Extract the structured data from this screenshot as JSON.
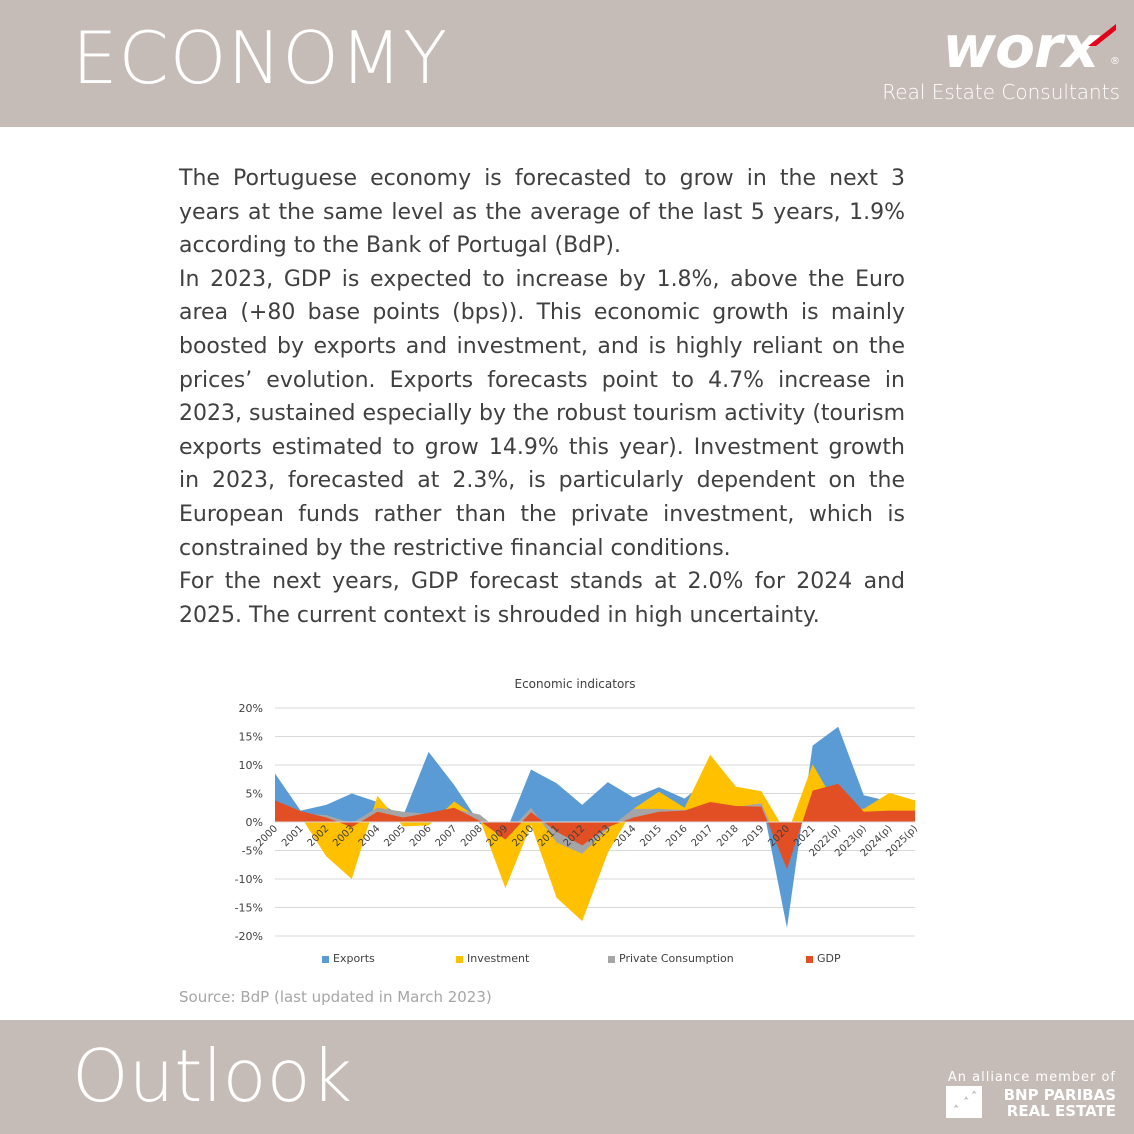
{
  "header": {
    "title": "ECONOMY",
    "logo_text": "worx",
    "logo_registered": "®",
    "logo_subtitle": "Real Estate Consultants"
  },
  "body": {
    "paragraphs": [
      "The Portuguese economy is forecasted to grow in the next 3 years at the same level as the average of the last 5 years, 1.9% according to the Bank of Portugal (BdP).",
      "In 2023, GDP is expected to increase by 1.8%, above the Euro area (+80 base points (bps)). This economic growth is mainly boosted by exports and investment, and is highly reliant on the prices’ evolution. Exports forecasts point to 4.7% increase in 2023, sustained especially by the robust tourism activity (tourism exports estimated to grow 14.9% this year). Investment growth in 2023, forecasted at 2.3%, is particularly dependent on the European funds rather than the private investment, which is constrained by the restrictive financial conditions.",
      "For the next years, GDP forecast stands at 2.0% for 2024 and 2025. The current context is shrouded in high uncertainty."
    ]
  },
  "chart_data": {
    "type": "area",
    "title": "Economic  indicators",
    "x": [
      "2000",
      "2001",
      "2002",
      "2003",
      "2004",
      "2005",
      "2006",
      "2007",
      "2008",
      "2009",
      "2010",
      "2011",
      "2012",
      "2013",
      "2014",
      "2015",
      "2016",
      "2017",
      "2018",
      "2019",
      "2020",
      "2021",
      "2022(p)",
      "2023(p)",
      "2024(p)",
      "2025(p)"
    ],
    "ylim": [
      -20,
      20
    ],
    "yticks": [
      20,
      15,
      10,
      5,
      0,
      -5,
      -10,
      -15,
      -20
    ],
    "ytick_labels": [
      "20%",
      "15%",
      "10%",
      "5%",
      "0%",
      "-5%",
      "-10%",
      "-15%",
      "-20%"
    ],
    "grid": true,
    "legend_position": "bottom",
    "series": [
      {
        "name": "Exports",
        "color": "#5b9bd5",
        "values": [
          8.5,
          2.0,
          3.0,
          5.0,
          3.5,
          1.0,
          12.3,
          6.5,
          -0.3,
          -2.0,
          9.2,
          6.8,
          3.0,
          7.0,
          4.3,
          6.1,
          4.1,
          7.8,
          4.3,
          4.1,
          -18.6,
          13.4,
          16.7,
          4.7,
          3.6,
          3.2
        ]
      },
      {
        "name": "Investment",
        "color": "#ffc000",
        "values": [
          3.5,
          1.0,
          -6.0,
          -10.0,
          4.6,
          -0.8,
          -0.6,
          3.6,
          0.5,
          -11.6,
          -0.5,
          -13.3,
          -17.4,
          -5.4,
          2.3,
          5.3,
          2.5,
          11.8,
          6.2,
          5.4,
          -2.2,
          10.1,
          2.4,
          2.3,
          5.1,
          3.8
        ]
      },
      {
        "name": "Private Consumption",
        "color": "#a5a5a5",
        "values": [
          3.5,
          1.5,
          1.2,
          -0.2,
          2.5,
          1.8,
          1.4,
          2.3,
          1.3,
          -2.3,
          2.5,
          -3.6,
          -5.6,
          -1.2,
          2.3,
          2.3,
          2.1,
          2.3,
          2.6,
          3.3,
          -7.0,
          4.7,
          5.8,
          0.9,
          1.2,
          1.8
        ]
      },
      {
        "name": "GDP",
        "color": "#e24f25",
        "values": [
          3.8,
          1.9,
          0.8,
          -0.9,
          1.8,
          0.8,
          1.6,
          2.5,
          0.2,
          -3.1,
          1.7,
          -1.7,
          -4.1,
          -0.9,
          0.8,
          1.8,
          2.0,
          3.5,
          2.8,
          2.7,
          -8.3,
          5.5,
          6.7,
          1.8,
          2.0,
          2.0
        ]
      }
    ]
  },
  "source": "Source: BdP (last updated in March 2023)",
  "footer": {
    "title": "Outlook",
    "alliance_line1": "An alliance member of",
    "alliance_line2": "BNP PARIBAS",
    "alliance_line3": "REAL ESTATE"
  }
}
